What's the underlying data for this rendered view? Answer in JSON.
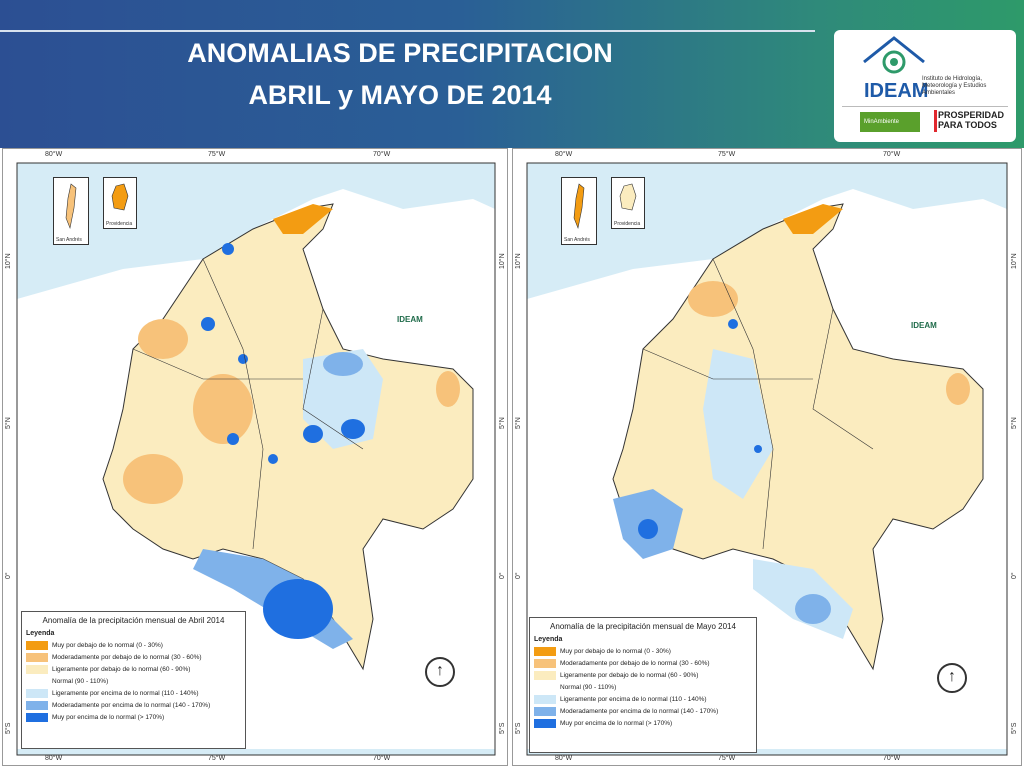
{
  "header": {
    "title_line1": "ANOMALIAS DE PRECIPITACION",
    "title_line2": "ABRIL y MAYO DE 2014"
  },
  "logo": {
    "name": "IDEAM",
    "subtitle": "Instituto de Hidrología, Meteorología y Estudios Ambientales",
    "minambiente": "MinAmbiente",
    "prosperidad": "PROSPERIDAD PARA TODOS"
  },
  "coords": {
    "top": [
      "80°W",
      "75°W",
      "70°W"
    ],
    "side": [
      "10°N",
      "5°N",
      "0°",
      "5°S"
    ]
  },
  "insets": [
    "San Andrés",
    "Providencia"
  ],
  "maps": [
    {
      "legend_title": "Anomalía de la precipitación mensual de Abril 2014",
      "watermark": "IDEAM"
    },
    {
      "legend_title": "Anomalía de la precipitación mensual de Mayo 2014",
      "watermark": "IDEAM"
    }
  ],
  "legend": {
    "heading": "Leyenda",
    "items": [
      {
        "label": "Muy por debajo de lo normal (0 - 30%)",
        "color": "#f39c12"
      },
      {
        "label": "Moderadamente por debajo de lo normal (30 - 60%)",
        "color": "#f7c27a"
      },
      {
        "label": "Ligeramente por debajo de lo normal (60 - 90%)",
        "color": "#fbecbf"
      },
      {
        "label": "Normal (90 - 110%)",
        "color": "#ffffff"
      },
      {
        "label": "Ligeramente por encima de lo normal (110 - 140%)",
        "color": "#cde7f7"
      },
      {
        "label": "Moderadamente por encima de lo normal (140 - 170%)",
        "color": "#7fb2ea"
      },
      {
        "label": "Muy por encima de lo normal (> 170%)",
        "color": "#1f6fe0"
      }
    ]
  }
}
